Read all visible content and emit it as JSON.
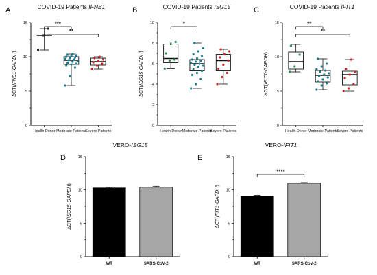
{
  "chart_data": [
    {
      "panel": "A",
      "type": "box",
      "title_prefix": "COVID-19 Patients ",
      "title_gene": "IFNB1",
      "ylabel_prefix": "ΔCT(",
      "ylabel_gene": "IFNB1-GAPDH",
      "ylabel_suffix": ")",
      "ylim": [
        0,
        15
      ],
      "yticks": [
        "0",
        "5",
        "10",
        "15"
      ],
      "categories": [
        "Health Donor",
        "Moderate  Patients",
        "Severe Patients"
      ],
      "series": [
        {
          "name": "Health Donor",
          "color": "#222222",
          "min": 11.0,
          "q1": 13.1,
          "median": 13.1,
          "q3": 13.1,
          "max": 14.1,
          "points": [
            11.0,
            13.1,
            14.1
          ]
        },
        {
          "name": "Moderate  Patients",
          "color": "#1f7a8c",
          "min": 5.8,
          "q1": 8.9,
          "median": 9.5,
          "q3": 10.0,
          "max": 10.4,
          "points": [
            5.8,
            7.2,
            8.4,
            8.7,
            8.9,
            9.0,
            9.1,
            9.3,
            9.4,
            9.5,
            9.6,
            9.7,
            9.8,
            9.9,
            10.0,
            10.1,
            10.2,
            10.3,
            10.4
          ]
        },
        {
          "name": "Severe Patients",
          "color": "#cc2222",
          "min": 8.2,
          "q1": 8.8,
          "median": 9.3,
          "q3": 9.8,
          "max": 10.0,
          "points": [
            8.2,
            8.7,
            9.0,
            9.2,
            9.4,
            9.6,
            9.8,
            10.0
          ]
        }
      ],
      "significance": [
        {
          "from": 0,
          "to": 1,
          "label": "***"
        },
        {
          "from": 0,
          "to": 2,
          "label": "**"
        }
      ]
    },
    {
      "panel": "B",
      "type": "box",
      "title_prefix": "COVID-19 Patients ",
      "title_gene": "ISG15",
      "ylabel_prefix": "ΔCT(",
      "ylabel_gene": "ISG15-GAPDH",
      "ylabel_suffix": ")",
      "ylim": [
        0,
        10
      ],
      "yticks": [
        "0",
        "2",
        "4",
        "6",
        "8",
        "10"
      ],
      "categories": [
        "Health Donor",
        "Moderate  Patients",
        "Severe Patients"
      ],
      "series": [
        {
          "name": "Health Donor",
          "color": "#2e8b57",
          "min": 5.5,
          "q1": 6.1,
          "median": 6.5,
          "q3": 7.9,
          "max": 8.1,
          "points": [
            5.5,
            6.3,
            6.4,
            7.0,
            7.9,
            8.1
          ]
        },
        {
          "name": "Moderate  Patients",
          "color": "#1f7a8c",
          "min": 3.6,
          "q1": 5.3,
          "median": 6.0,
          "q3": 6.4,
          "max": 8.0,
          "points": [
            3.6,
            4.0,
            4.5,
            4.9,
            5.1,
            5.3,
            5.5,
            5.7,
            5.8,
            5.9,
            6.0,
            6.1,
            6.2,
            6.3,
            6.4,
            6.5,
            6.7,
            6.9,
            7.2,
            7.5,
            8.0
          ]
        },
        {
          "name": "Severe Patients",
          "color": "#cc2222",
          "min": 4.0,
          "q1": 5.3,
          "median": 6.3,
          "q3": 6.9,
          "max": 7.4,
          "points": [
            4.0,
            4.7,
            5.1,
            5.5,
            5.9,
            6.3,
            6.6,
            6.9,
            7.2,
            7.4
          ]
        }
      ],
      "significance": [
        {
          "from": 0,
          "to": 1,
          "label": "*"
        }
      ]
    },
    {
      "panel": "C",
      "type": "box",
      "title_prefix": "COVID-19 Patients ",
      "title_gene": "IFIT1",
      "ylabel_prefix": "ΔCT(",
      "ylabel_gene": "IFIT1-GAPDH",
      "ylabel_suffix": ")",
      "ylim": [
        0,
        15
      ],
      "yticks": [
        "0",
        "5",
        "10",
        "15"
      ],
      "categories": [
        "Health Donor",
        "Moderate  Patients",
        "Severe Patients"
      ],
      "series": [
        {
          "name": "Health Donor",
          "color": "#2e8b57",
          "min": 7.8,
          "q1": 8.2,
          "median": 9.3,
          "q3": 10.7,
          "max": 11.8,
          "points": [
            7.8,
            8.6,
            10.3,
            11.6
          ]
        },
        {
          "name": "Moderate  Patients",
          "color": "#1f7a8c",
          "min": 5.2,
          "q1": 6.3,
          "median": 7.3,
          "q3": 8.0,
          "max": 9.7,
          "points": [
            5.2,
            5.8,
            6.1,
            6.4,
            6.7,
            7.0,
            7.2,
            7.4,
            7.6,
            7.8,
            8.0,
            8.2,
            8.6,
            9.0,
            9.7
          ]
        },
        {
          "name": "Severe Patients",
          "color": "#cc2222",
          "min": 5.0,
          "q1": 5.9,
          "median": 7.4,
          "q3": 7.9,
          "max": 9.6,
          "points": [
            5.0,
            5.4,
            6.0,
            6.9,
            7.4,
            7.8,
            8.2,
            9.6
          ]
        }
      ],
      "significance": [
        {
          "from": 0,
          "to": 1,
          "label": "**"
        },
        {
          "from": 0,
          "to": 2,
          "label": "**"
        }
      ]
    },
    {
      "panel": "D",
      "type": "bar",
      "title_prefix": "VERO-",
      "title_gene": "ISG15",
      "ylabel_prefix": "ΔCT(",
      "ylabel_gene": "ISG15-GAPDH",
      "ylabel_suffix": ")",
      "ylim": [
        0,
        15
      ],
      "yticks": [
        "0",
        "5",
        "10",
        "15"
      ],
      "categories": [
        "WT",
        "SARS-CoV-2"
      ],
      "values": [
        10.3,
        10.4
      ],
      "errors": [
        0.1,
        0.15
      ],
      "colors": [
        "#000000",
        "#a6a6a6"
      ],
      "significance": []
    },
    {
      "panel": "E",
      "type": "bar",
      "title_prefix": "VERO-",
      "title_gene": "IFIT1",
      "ylabel_prefix": "ΔCT(",
      "ylabel_gene": "IFIT1-GAPDH",
      "ylabel_suffix": ")",
      "ylim": [
        0,
        15
      ],
      "yticks": [
        "0",
        "5",
        "10",
        "15"
      ],
      "categories": [
        "WT",
        "SARS-CoV-2"
      ],
      "values": [
        9.1,
        11.0
      ],
      "errors": [
        0.1,
        0.1
      ],
      "colors": [
        "#000000",
        "#a6a6a6"
      ],
      "significance": [
        {
          "from": 0,
          "to": 1,
          "label": "****"
        }
      ]
    }
  ]
}
